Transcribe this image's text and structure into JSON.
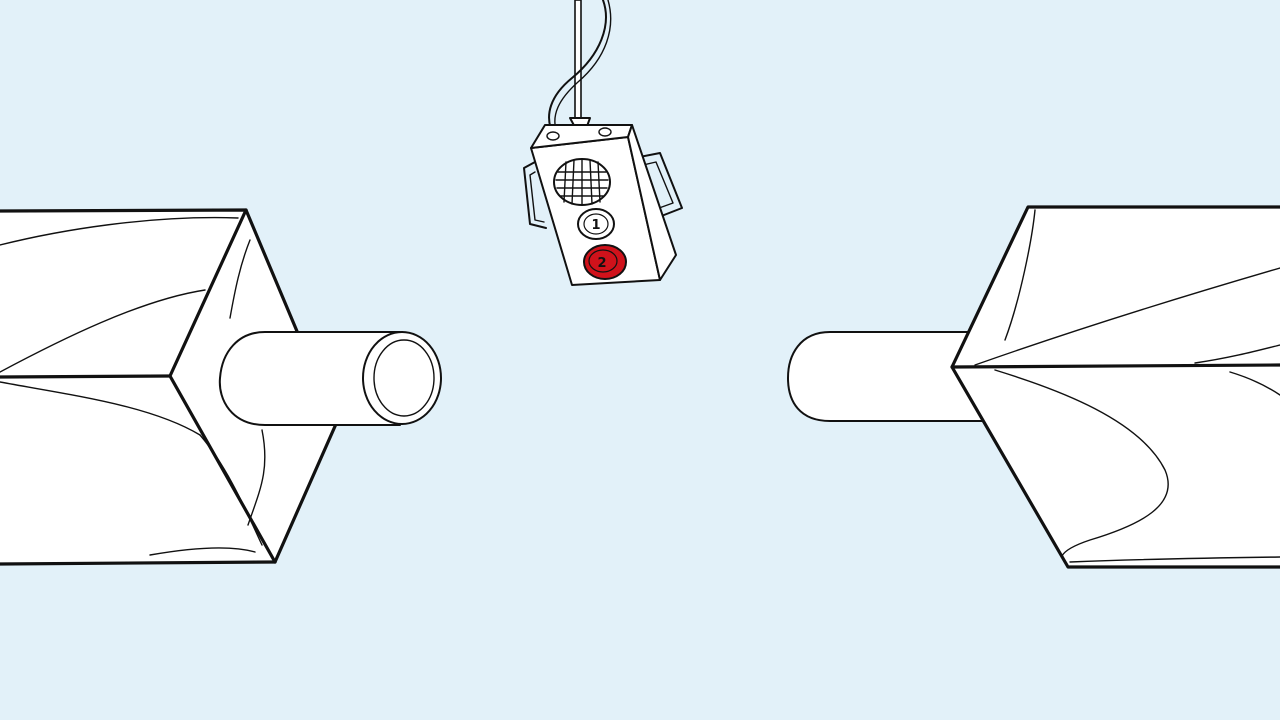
{
  "scene": {
    "background_color": "#e2f1f9",
    "ink_color": "#111111",
    "fill_color": "#ffffff"
  },
  "control_box": {
    "button_1_label": "1",
    "button_2_label": "2",
    "button_1_color": "#ffffff",
    "button_2_color": "#d0121b"
  }
}
